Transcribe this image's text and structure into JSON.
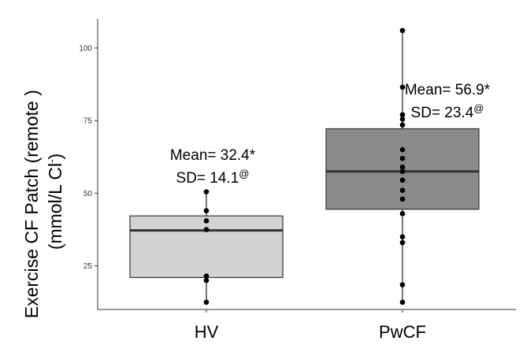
{
  "chart_data": {
    "type": "box",
    "title": "",
    "ylabel_line1": "Exercise CF Patch (remote )",
    "ylabel_line2": "(mmol/L Cl",
    "ylabel_sup": "-",
    "ylabel_close": ")",
    "xlabel": "",
    "ylim": [
      10,
      110
    ],
    "yticks": [
      25,
      50,
      75,
      100
    ],
    "grid": false,
    "categories": [
      "HV",
      "PwCF"
    ],
    "colors": {
      "HV": "#d3d3d3",
      "PwCF": "#8a8a8a"
    },
    "boxes": [
      {
        "category": "HV",
        "whisker_low": 12.5,
        "q1": 21,
        "median": 37.2,
        "q3": 42.2,
        "whisker_high": 50.5
      },
      {
        "category": "PwCF",
        "whisker_low": 12.5,
        "q1": 44.5,
        "median": 57.5,
        "q3": 72.2,
        "whisker_high": 106
      }
    ],
    "points": {
      "HV": [
        12.5,
        20,
        21.5,
        37.5,
        40.5,
        44,
        50.5
      ],
      "PwCF": [
        12.5,
        18.5,
        33,
        35,
        43,
        48,
        51,
        54.5,
        57.5,
        59,
        62,
        65,
        73.5,
        75.5,
        77,
        86.5,
        106
      ]
    },
    "annotations": [
      {
        "category": "HV",
        "line1": "Mean= 32.4*",
        "line2": "SD= 14.1",
        "sup": "@"
      },
      {
        "category": "PwCF",
        "line1": "Mean= 56.9*",
        "line2": "SD= 23.4",
        "sup": "@"
      }
    ]
  }
}
